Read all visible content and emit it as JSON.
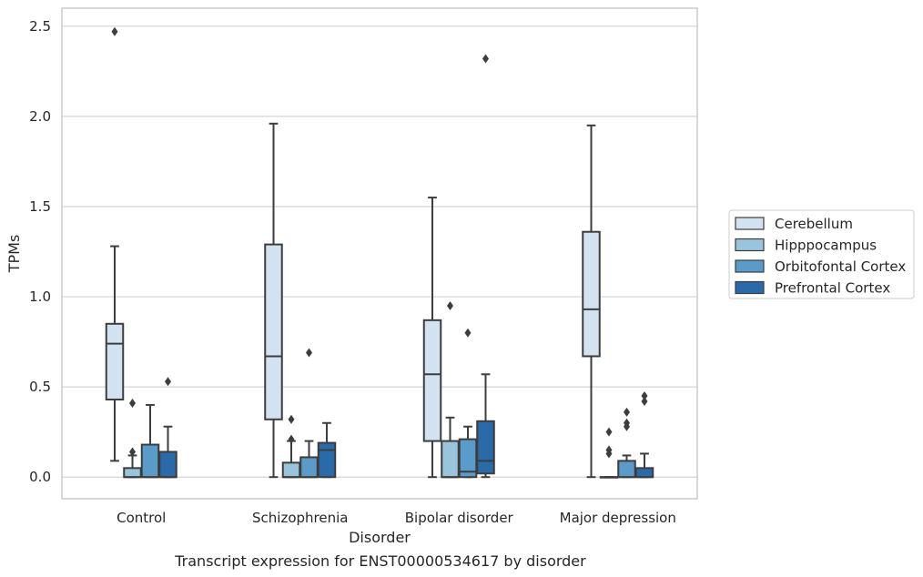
{
  "chart_data": {
    "type": "box",
    "title": "Transcript expression for ENST00000534617 by disorder",
    "xlabel": "Disorder",
    "ylabel": "TPMs",
    "ylim": [
      -0.12,
      2.6
    ],
    "yticks": [
      "0.0",
      "0.5",
      "1.0",
      "1.5",
      "2.0",
      "2.5"
    ],
    "grid": true,
    "legend_position": "right",
    "categories": [
      "Control",
      "Schizophrenia",
      "Bipolar disorder",
      "Major depression"
    ],
    "series": [
      {
        "name": "Cerebellum",
        "color": "#d3e2f0",
        "boxes": [
          {
            "whislo": 0.09,
            "q1": 0.43,
            "med": 0.74,
            "q3": 0.85,
            "whishi": 1.28,
            "fliers": [
              2.47
            ]
          },
          {
            "whislo": 0.0,
            "q1": 0.32,
            "med": 0.67,
            "q3": 1.29,
            "whishi": 1.96,
            "fliers": []
          },
          {
            "whislo": 0.0,
            "q1": 0.2,
            "med": 0.57,
            "q3": 0.87,
            "whishi": 1.55,
            "fliers": []
          },
          {
            "whislo": 0.0,
            "q1": 0.67,
            "med": 0.93,
            "q3": 1.36,
            "whishi": 1.95,
            "fliers": []
          }
        ]
      },
      {
        "name": "Hipppocampus",
        "color": "#9ac3dc",
        "boxes": [
          {
            "whislo": 0.0,
            "q1": 0.0,
            "med": 0.0,
            "q3": 0.05,
            "whishi": 0.12,
            "fliers": [
              0.14,
              0.41
            ]
          },
          {
            "whislo": 0.0,
            "q1": 0.0,
            "med": 0.0,
            "q3": 0.08,
            "whishi": 0.2,
            "fliers": [
              0.21,
              0.32
            ]
          },
          {
            "whislo": 0.0,
            "q1": 0.0,
            "med": 0.0,
            "q3": 0.2,
            "whishi": 0.33,
            "fliers": [
              0.95
            ]
          },
          {
            "whislo": 0.0,
            "q1": 0.0,
            "med": 0.0,
            "q3": 0.0,
            "whishi": 0.0,
            "fliers": [
              0.13,
              0.15,
              0.25
            ]
          }
        ]
      },
      {
        "name": "Orbitofontal Cortex",
        "color": "#5a9bc9",
        "boxes": [
          {
            "whislo": 0.0,
            "q1": 0.0,
            "med": 0.0,
            "q3": 0.18,
            "whishi": 0.4,
            "fliers": []
          },
          {
            "whislo": 0.0,
            "q1": 0.0,
            "med": 0.0,
            "q3": 0.11,
            "whishi": 0.2,
            "fliers": [
              0.69
            ]
          },
          {
            "whislo": 0.0,
            "q1": 0.0,
            "med": 0.03,
            "q3": 0.21,
            "whishi": 0.28,
            "fliers": [
              0.8
            ]
          },
          {
            "whislo": 0.0,
            "q1": 0.0,
            "med": 0.0,
            "q3": 0.09,
            "whishi": 0.12,
            "fliers": [
              0.28,
              0.3,
              0.36
            ]
          }
        ]
      },
      {
        "name": "Prefrontal Cortex",
        "color": "#2b6aa9",
        "boxes": [
          {
            "whislo": 0.0,
            "q1": 0.0,
            "med": 0.0,
            "q3": 0.14,
            "whishi": 0.28,
            "fliers": [
              0.53
            ]
          },
          {
            "whislo": 0.0,
            "q1": 0.0,
            "med": 0.15,
            "q3": 0.19,
            "whishi": 0.3,
            "fliers": []
          },
          {
            "whislo": 0.0,
            "q1": 0.02,
            "med": 0.09,
            "q3": 0.31,
            "whishi": 0.57,
            "fliers": [
              2.32
            ]
          },
          {
            "whislo": 0.0,
            "q1": 0.0,
            "med": 0.0,
            "q3": 0.05,
            "whishi": 0.13,
            "fliers": [
              0.42,
              0.45
            ]
          }
        ]
      }
    ]
  }
}
